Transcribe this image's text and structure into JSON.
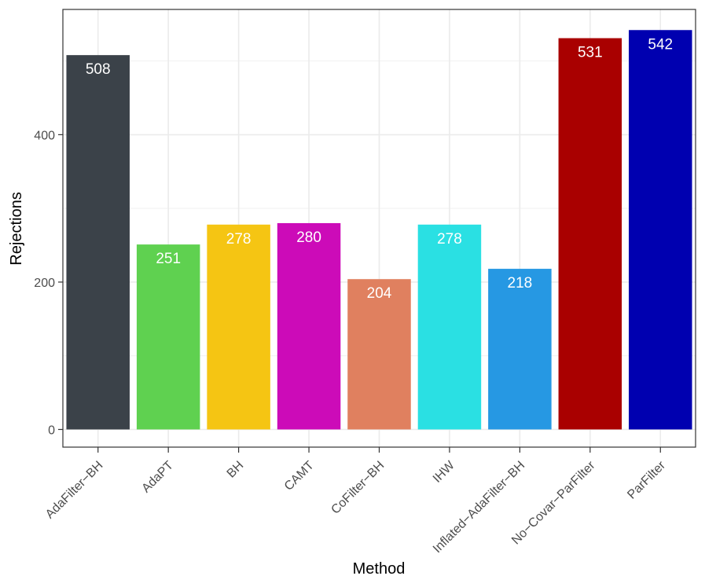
{
  "chart_data": {
    "type": "bar",
    "title": "",
    "xlabel": "Method",
    "ylabel": "Rejections",
    "ylim": [
      -24,
      570
    ],
    "yticks": [
      0,
      200,
      400
    ],
    "grid": true,
    "categories": [
      "AdaFilter−BH",
      "AdaPT",
      "BH",
      "CAMT",
      "CoFilter−BH",
      "IHW",
      "Inflated−AdaFilter−BH",
      "No−Covar−ParFilter",
      "ParFilter"
    ],
    "values": [
      508,
      251,
      278,
      280,
      204,
      278,
      218,
      531,
      542
    ],
    "data_labels": [
      "508",
      "251",
      "278",
      "280",
      "204",
      "278",
      "218",
      "531",
      "542"
    ],
    "ytick_labels": [
      "0",
      "200",
      "400"
    ],
    "colors": [
      "#3b4249",
      "#5fd150",
      "#f5c513",
      "#cc0bb8",
      "#e0805f",
      "#2ae0e3",
      "#2698e3",
      "#a90000",
      "#0000b0"
    ]
  }
}
